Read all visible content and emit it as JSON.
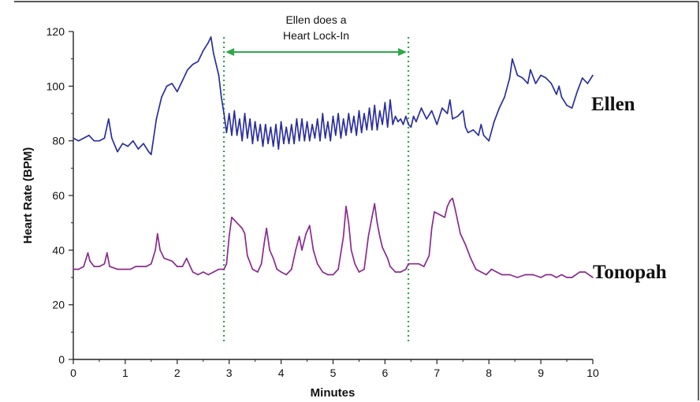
{
  "chart_data": {
    "type": "line",
    "title": "",
    "xlabel": "Minutes",
    "ylabel": "Heart Rate (BPM)",
    "xlim": [
      0,
      10
    ],
    "ylim": [
      0,
      120
    ],
    "x_ticks": [
      "0",
      "1",
      "2",
      "3",
      "4",
      "5",
      "6",
      "7",
      "8",
      "9",
      "10"
    ],
    "y_ticks": [
      "0",
      "20",
      "40",
      "60",
      "80",
      "100",
      "120"
    ],
    "grid": false,
    "legend": "none",
    "annotation": {
      "line1": "Ellen does a",
      "line2": "Heart Lock-In",
      "x_start": 2.9,
      "x_end": 6.45,
      "marker_color": "#2ea84a"
    },
    "series": [
      {
        "name": "Ellen",
        "color": "#2a2f9e",
        "points": [
          [
            0.0,
            81
          ],
          [
            0.1,
            80
          ],
          [
            0.2,
            81
          ],
          [
            0.3,
            82
          ],
          [
            0.4,
            80
          ],
          [
            0.5,
            80
          ],
          [
            0.6,
            81
          ],
          [
            0.68,
            88
          ],
          [
            0.74,
            81
          ],
          [
            0.85,
            76
          ],
          [
            0.95,
            79
          ],
          [
            1.05,
            78
          ],
          [
            1.15,
            80
          ],
          [
            1.25,
            77
          ],
          [
            1.35,
            79
          ],
          [
            1.45,
            76
          ],
          [
            1.5,
            75
          ],
          [
            1.6,
            88
          ],
          [
            1.7,
            96
          ],
          [
            1.8,
            100
          ],
          [
            1.9,
            101
          ],
          [
            2.0,
            98
          ],
          [
            2.1,
            102
          ],
          [
            2.2,
            106
          ],
          [
            2.3,
            108
          ],
          [
            2.4,
            109
          ],
          [
            2.5,
            113
          ],
          [
            2.6,
            116
          ],
          [
            2.65,
            118
          ],
          [
            2.7,
            112
          ],
          [
            2.8,
            104
          ],
          [
            2.85,
            96
          ],
          [
            2.9,
            90
          ],
          [
            2.95,
            83
          ],
          [
            3.0,
            90
          ],
          [
            3.05,
            82
          ],
          [
            3.1,
            91
          ],
          [
            3.15,
            82
          ],
          [
            3.2,
            88
          ],
          [
            3.25,
            80
          ],
          [
            3.3,
            90
          ],
          [
            3.35,
            81
          ],
          [
            3.4,
            88
          ],
          [
            3.45,
            79
          ],
          [
            3.5,
            87
          ],
          [
            3.55,
            80
          ],
          [
            3.6,
            86
          ],
          [
            3.65,
            78
          ],
          [
            3.7,
            86
          ],
          [
            3.75,
            79
          ],
          [
            3.8,
            85
          ],
          [
            3.85,
            78
          ],
          [
            3.9,
            86
          ],
          [
            3.95,
            77
          ],
          [
            4.0,
            87
          ],
          [
            4.05,
            79
          ],
          [
            4.1,
            85
          ],
          [
            4.15,
            79
          ],
          [
            4.2,
            86
          ],
          [
            4.25,
            79
          ],
          [
            4.3,
            88
          ],
          [
            4.35,
            80
          ],
          [
            4.4,
            88
          ],
          [
            4.45,
            80
          ],
          [
            4.5,
            87
          ],
          [
            4.55,
            80
          ],
          [
            4.6,
            86
          ],
          [
            4.65,
            81
          ],
          [
            4.7,
            88
          ],
          [
            4.75,
            80
          ],
          [
            4.8,
            90
          ],
          [
            4.85,
            81
          ],
          [
            4.9,
            87
          ],
          [
            4.95,
            80
          ],
          [
            5.0,
            89
          ],
          [
            5.05,
            82
          ],
          [
            5.1,
            90
          ],
          [
            5.15,
            81
          ],
          [
            5.2,
            88
          ],
          [
            5.25,
            82
          ],
          [
            5.3,
            90
          ],
          [
            5.35,
            83
          ],
          [
            5.4,
            89
          ],
          [
            5.45,
            82
          ],
          [
            5.5,
            91
          ],
          [
            5.55,
            83
          ],
          [
            5.6,
            90
          ],
          [
            5.65,
            84
          ],
          [
            5.7,
            92
          ],
          [
            5.75,
            84
          ],
          [
            5.8,
            93
          ],
          [
            5.85,
            84
          ],
          [
            5.9,
            91
          ],
          [
            5.95,
            86
          ],
          [
            6.0,
            94
          ],
          [
            6.05,
            85
          ],
          [
            6.1,
            95
          ],
          [
            6.15,
            86
          ],
          [
            6.2,
            89
          ],
          [
            6.25,
            87
          ],
          [
            6.3,
            88
          ],
          [
            6.35,
            86
          ],
          [
            6.4,
            89
          ],
          [
            6.45,
            86
          ],
          [
            6.5,
            85
          ],
          [
            6.55,
            89
          ],
          [
            6.6,
            87
          ],
          [
            6.7,
            92
          ],
          [
            6.8,
            88
          ],
          [
            6.9,
            91
          ],
          [
            7.0,
            86
          ],
          [
            7.1,
            92
          ],
          [
            7.2,
            90
          ],
          [
            7.25,
            95
          ],
          [
            7.3,
            88
          ],
          [
            7.4,
            89
          ],
          [
            7.5,
            91
          ],
          [
            7.55,
            85
          ],
          [
            7.6,
            83
          ],
          [
            7.7,
            84
          ],
          [
            7.8,
            82
          ],
          [
            7.85,
            86
          ],
          [
            7.9,
            82
          ],
          [
            8.0,
            80
          ],
          [
            8.1,
            87
          ],
          [
            8.2,
            92
          ],
          [
            8.3,
            96
          ],
          [
            8.4,
            103
          ],
          [
            8.45,
            110
          ],
          [
            8.55,
            104
          ],
          [
            8.65,
            103
          ],
          [
            8.75,
            101
          ],
          [
            8.8,
            106
          ],
          [
            8.9,
            101
          ],
          [
            9.0,
            104
          ],
          [
            9.1,
            103
          ],
          [
            9.2,
            101
          ],
          [
            9.3,
            97
          ],
          [
            9.35,
            100
          ],
          [
            9.4,
            96
          ],
          [
            9.5,
            93
          ],
          [
            9.6,
            92
          ],
          [
            9.7,
            98
          ],
          [
            9.8,
            103
          ],
          [
            9.9,
            101
          ],
          [
            10.0,
            104
          ]
        ]
      },
      {
        "name": "Tonopah",
        "color": "#8b2a8f",
        "points": [
          [
            0.0,
            33
          ],
          [
            0.1,
            33
          ],
          [
            0.2,
            34
          ],
          [
            0.28,
            39
          ],
          [
            0.32,
            36
          ],
          [
            0.4,
            34
          ],
          [
            0.5,
            34
          ],
          [
            0.6,
            35
          ],
          [
            0.65,
            39
          ],
          [
            0.7,
            34
          ],
          [
            0.85,
            33
          ],
          [
            1.0,
            33
          ],
          [
            1.1,
            33
          ],
          [
            1.2,
            34
          ],
          [
            1.3,
            34
          ],
          [
            1.4,
            34
          ],
          [
            1.5,
            35
          ],
          [
            1.58,
            40
          ],
          [
            1.62,
            46
          ],
          [
            1.67,
            40
          ],
          [
            1.75,
            37
          ],
          [
            1.9,
            36
          ],
          [
            2.0,
            34
          ],
          [
            2.1,
            34
          ],
          [
            2.18,
            37
          ],
          [
            2.25,
            34
          ],
          [
            2.3,
            32
          ],
          [
            2.4,
            31
          ],
          [
            2.5,
            32
          ],
          [
            2.6,
            31
          ],
          [
            2.7,
            32
          ],
          [
            2.8,
            33
          ],
          [
            2.9,
            33
          ],
          [
            2.95,
            35
          ],
          [
            3.0,
            45
          ],
          [
            3.05,
            52
          ],
          [
            3.15,
            50
          ],
          [
            3.25,
            48
          ],
          [
            3.3,
            46
          ],
          [
            3.35,
            38
          ],
          [
            3.45,
            33
          ],
          [
            3.55,
            32
          ],
          [
            3.62,
            35
          ],
          [
            3.67,
            42
          ],
          [
            3.72,
            48
          ],
          [
            3.78,
            40
          ],
          [
            3.85,
            37
          ],
          [
            3.92,
            33
          ],
          [
            4.0,
            32
          ],
          [
            4.1,
            31
          ],
          [
            4.2,
            33
          ],
          [
            4.28,
            40
          ],
          [
            4.35,
            45
          ],
          [
            4.4,
            40
          ],
          [
            4.48,
            46
          ],
          [
            4.55,
            49
          ],
          [
            4.62,
            40
          ],
          [
            4.7,
            35
          ],
          [
            4.8,
            32
          ],
          [
            4.9,
            31
          ],
          [
            5.0,
            31
          ],
          [
            5.1,
            33
          ],
          [
            5.2,
            45
          ],
          [
            5.25,
            56
          ],
          [
            5.3,
            50
          ],
          [
            5.35,
            40
          ],
          [
            5.42,
            35
          ],
          [
            5.5,
            32
          ],
          [
            5.6,
            33
          ],
          [
            5.68,
            45
          ],
          [
            5.75,
            52
          ],
          [
            5.8,
            57
          ],
          [
            5.85,
            50
          ],
          [
            5.9,
            45
          ],
          [
            5.95,
            41
          ],
          [
            6.0,
            39
          ],
          [
            6.05,
            37
          ],
          [
            6.1,
            34
          ],
          [
            6.2,
            32
          ],
          [
            6.3,
            32
          ],
          [
            6.4,
            33
          ],
          [
            6.45,
            35
          ],
          [
            6.55,
            35
          ],
          [
            6.65,
            35
          ],
          [
            6.75,
            34
          ],
          [
            6.85,
            38
          ],
          [
            6.9,
            48
          ],
          [
            6.95,
            54
          ],
          [
            7.05,
            53
          ],
          [
            7.15,
            52
          ],
          [
            7.2,
            56
          ],
          [
            7.25,
            58
          ],
          [
            7.3,
            59
          ],
          [
            7.35,
            55
          ],
          [
            7.45,
            46
          ],
          [
            7.55,
            42
          ],
          [
            7.65,
            37
          ],
          [
            7.75,
            33
          ],
          [
            7.85,
            32
          ],
          [
            7.95,
            31
          ],
          [
            8.05,
            33
          ],
          [
            8.15,
            32
          ],
          [
            8.25,
            31
          ],
          [
            8.4,
            31
          ],
          [
            8.55,
            30
          ],
          [
            8.7,
            31
          ],
          [
            8.85,
            31
          ],
          [
            9.0,
            30
          ],
          [
            9.1,
            31
          ],
          [
            9.2,
            31
          ],
          [
            9.3,
            30
          ],
          [
            9.4,
            31
          ],
          [
            9.5,
            30
          ],
          [
            9.6,
            30
          ],
          [
            9.75,
            32
          ],
          [
            9.85,
            32
          ],
          [
            10.0,
            30
          ]
        ]
      }
    ]
  }
}
